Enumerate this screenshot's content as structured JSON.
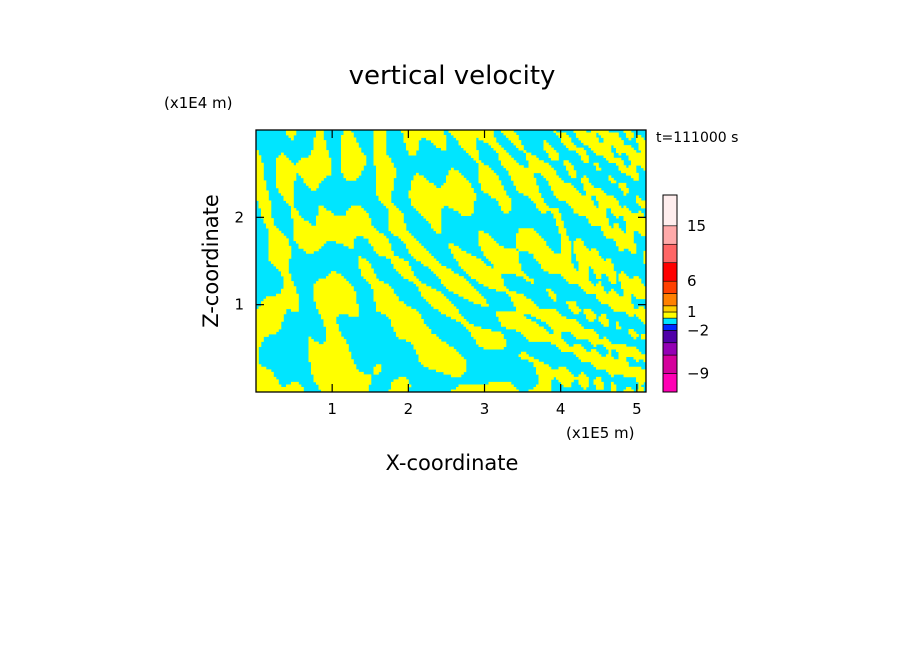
{
  "chart_data": {
    "type": "heatmap",
    "title": "vertical velocity",
    "xlabel": "X-coordinate",
    "ylabel": "Z-coordinate",
    "x_unit": "(x1E5 m)",
    "y_unit": "(x1E4 m)",
    "time_label": "t=111000 s",
    "xlim": [
      0,
      5.12
    ],
    "ylim": [
      0,
      3.0
    ],
    "x_ticks": [
      1,
      2,
      3,
      4,
      5
    ],
    "y_ticks": [
      1,
      2
    ],
    "x_tick_labels": [
      "1",
      "2",
      "3",
      "4",
      "5"
    ],
    "y_tick_labels": [
      "1",
      "2"
    ],
    "field_colors": {
      "negative": "#00e5ff",
      "positive": "#ffff00"
    },
    "colorbar": {
      "levels": [
        -12,
        -9,
        -6,
        -4,
        -2,
        -1,
        0,
        1,
        2,
        4,
        6,
        9,
        12,
        15,
        20
      ],
      "tick_values": [
        15,
        6,
        1,
        -2,
        -9
      ],
      "tick_labels": [
        "15",
        "6",
        "1",
        "−2",
        "−9"
      ],
      "colors": [
        "#ff00b4",
        "#d4009c",
        "#9400b4",
        "#5000a8",
        "#0028ff",
        "#00e5ff",
        "#ffff00",
        "#ffd000",
        "#ff8000",
        "#ff4000",
        "#ff0000",
        "#ff6666",
        "#ffaaaa",
        "#ffeeee"
      ]
    }
  }
}
